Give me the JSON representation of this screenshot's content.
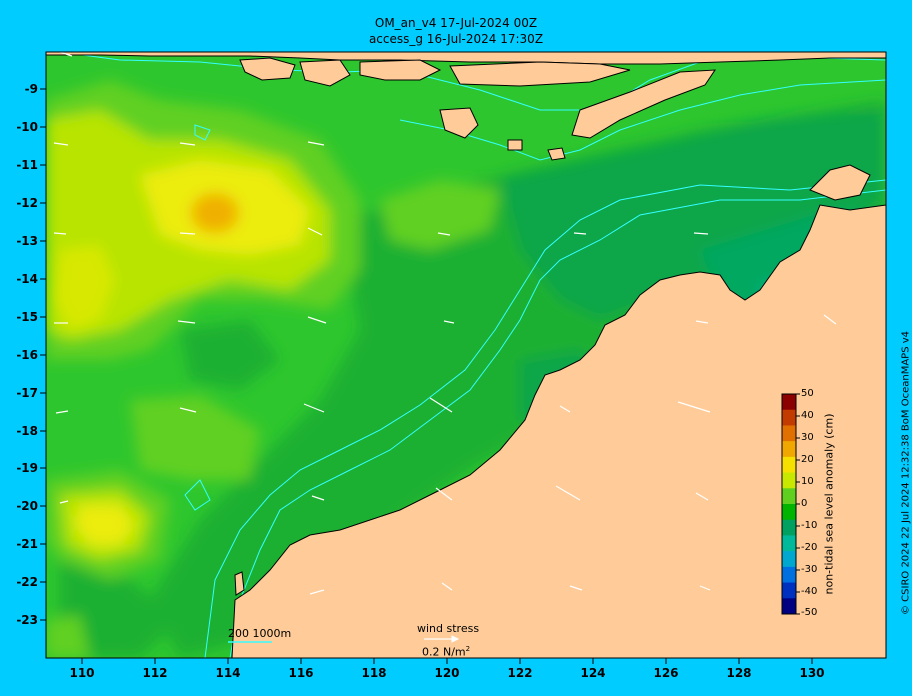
{
  "title": {
    "line1": "OM_an_v4  17-Jul-2024 00Z",
    "line2": "access_g 16-Jul-2024 17:30Z"
  },
  "axes": {
    "lat_labels": [
      "-9",
      "-10",
      "-11",
      "-12",
      "-13",
      "-14",
      "-15",
      "-16",
      "-17",
      "-18",
      "-19",
      "-20",
      "-21",
      "-22",
      "-23"
    ],
    "lon_labels": [
      "110",
      "112",
      "114",
      "116",
      "118",
      "120",
      "122",
      "124",
      "126",
      "128",
      "130"
    ]
  },
  "colorbar": {
    "title": "non-tidal sea level anomaly (cm)",
    "ticks": [
      "50",
      "40",
      "30",
      "20",
      "10",
      "0",
      "-10",
      "-20",
      "-30",
      "-40",
      "-50"
    ],
    "colors": [
      "#8b0000",
      "#c23b00",
      "#e07000",
      "#f0a800",
      "#f5e000",
      "#c8e800",
      "#60d020",
      "#00b400",
      "#00a060",
      "#00b89a",
      "#00a8d0",
      "#0070e0",
      "#0030c0",
      "#000080"
    ]
  },
  "legend": {
    "contours": "200  1000m",
    "wind_title": "wind stress",
    "wind_scale_value": "0.2 N/m",
    "wind_scale_exp": "2"
  },
  "credit": "© CSIRO 2024   22 Jul 2024 12:32:38 BoM OceanMAPS v4",
  "map_colors": {
    "ocean_base": "#2ec62e",
    "land": "#ffcc99",
    "isobath": "#33ffff"
  }
}
